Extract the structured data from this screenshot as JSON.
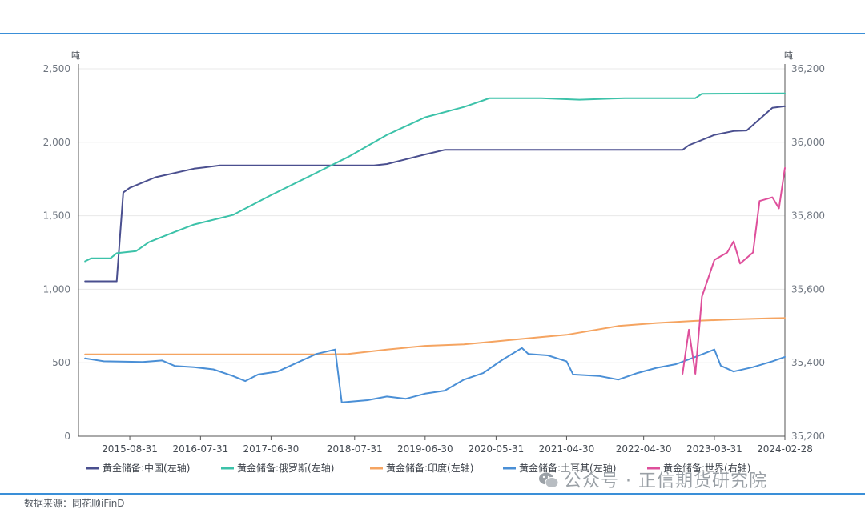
{
  "source": "数据来源：同花顺iFinD",
  "watermark": "公众号 · 正信期货研究院",
  "colors": {
    "frame": "#3a8fd8",
    "grid": "#e8e8e8"
  },
  "chart_data": {
    "type": "line",
    "left_axis": {
      "unit": "吨",
      "ylim": [
        0,
        2500
      ],
      "ticks": [
        "0",
        "500",
        "1,000",
        "1,500",
        "2,000",
        "2,500"
      ]
    },
    "right_axis": {
      "unit": "吨",
      "ylim": [
        35200,
        36200
      ],
      "ticks": [
        "35,200",
        "35,400",
        "35,600",
        "35,800",
        "36,000",
        "36,200"
      ]
    },
    "x_range": [
      "2014-12-31",
      "2024-02-28"
    ],
    "x_ticks": [
      "2015-08-31",
      "2016-07-31",
      "2017-06-30",
      "2018-07-31",
      "2019-06-30",
      "2020-05-31",
      "2021-04-30",
      "2022-04-30",
      "2023-03-31",
      "2024-02-28"
    ],
    "legend_position": "bottom",
    "series": [
      {
        "name": "黄金储备:中国(左轴)",
        "axis": "left",
        "color": "#4a4f8f",
        "points": [
          [
            "2015-01-31",
            1054
          ],
          [
            "2015-06-30",
            1054
          ],
          [
            "2015-07-31",
            1658
          ],
          [
            "2015-08-31",
            1690
          ],
          [
            "2015-12-31",
            1762
          ],
          [
            "2016-06-30",
            1820
          ],
          [
            "2016-10-31",
            1842
          ],
          [
            "2018-10-31",
            1842
          ],
          [
            "2018-12-31",
            1852
          ],
          [
            "2019-06-30",
            1917
          ],
          [
            "2019-09-30",
            1948
          ],
          [
            "2022-10-31",
            1948
          ],
          [
            "2022-11-30",
            1980
          ],
          [
            "2023-03-31",
            2050
          ],
          [
            "2023-06-30",
            2076
          ],
          [
            "2023-08-31",
            2080
          ],
          [
            "2023-12-31",
            2235
          ],
          [
            "2024-02-28",
            2245
          ]
        ]
      },
      {
        "name": "黄金储备:俄罗斯(左轴)",
        "axis": "left",
        "color": "#3cc2a9",
        "points": [
          [
            "2015-01-31",
            1190
          ],
          [
            "2015-02-28",
            1210
          ],
          [
            "2015-05-31",
            1210
          ],
          [
            "2015-06-30",
            1245
          ],
          [
            "2015-09-30",
            1260
          ],
          [
            "2015-11-30",
            1320
          ],
          [
            "2016-03-31",
            1390
          ],
          [
            "2016-06-30",
            1440
          ],
          [
            "2016-12-31",
            1505
          ],
          [
            "2017-06-30",
            1640
          ],
          [
            "2017-12-31",
            1770
          ],
          [
            "2018-06-30",
            1900
          ],
          [
            "2018-12-31",
            2050
          ],
          [
            "2019-06-30",
            2170
          ],
          [
            "2019-12-31",
            2240
          ],
          [
            "2020-03-31",
            2285
          ],
          [
            "2020-04-30",
            2300
          ],
          [
            "2020-12-31",
            2300
          ],
          [
            "2021-06-30",
            2290
          ],
          [
            "2022-01-31",
            2300
          ],
          [
            "2022-12-31",
            2300
          ],
          [
            "2023-01-31",
            2330
          ],
          [
            "2024-02-28",
            2333
          ]
        ]
      },
      {
        "name": "黄金储备:印度(左轴)",
        "axis": "left",
        "color": "#f5a461",
        "points": [
          [
            "2015-01-31",
            557
          ],
          [
            "2018-03-31",
            557
          ],
          [
            "2018-06-30",
            560
          ],
          [
            "2018-12-31",
            590
          ],
          [
            "2019-06-30",
            615
          ],
          [
            "2019-12-31",
            625
          ],
          [
            "2020-06-30",
            650
          ],
          [
            "2020-12-31",
            675
          ],
          [
            "2021-04-30",
            690
          ],
          [
            "2021-12-31",
            750
          ],
          [
            "2022-06-30",
            770
          ],
          [
            "2022-12-31",
            785
          ],
          [
            "2023-06-30",
            795
          ],
          [
            "2023-12-31",
            803
          ],
          [
            "2024-02-28",
            804
          ]
        ]
      },
      {
        "name": "黄金储备:土耳其(左轴)",
        "axis": "left",
        "color": "#4a8fd6",
        "points": [
          [
            "2015-01-31",
            530
          ],
          [
            "2015-04-30",
            510
          ],
          [
            "2015-10-31",
            505
          ],
          [
            "2016-01-31",
            515
          ],
          [
            "2016-03-31",
            478
          ],
          [
            "2016-06-30",
            470
          ],
          [
            "2016-09-30",
            455
          ],
          [
            "2016-12-31",
            410
          ],
          [
            "2017-02-28",
            375
          ],
          [
            "2017-04-30",
            420
          ],
          [
            "2017-07-31",
            440
          ],
          [
            "2017-10-31",
            500
          ],
          [
            "2018-01-31",
            560
          ],
          [
            "2018-04-30",
            590
          ],
          [
            "2018-05-31",
            230
          ],
          [
            "2018-09-30",
            245
          ],
          [
            "2018-12-31",
            270
          ],
          [
            "2019-03-31",
            255
          ],
          [
            "2019-06-30",
            290
          ],
          [
            "2019-09-30",
            310
          ],
          [
            "2019-12-31",
            385
          ],
          [
            "2020-03-31",
            430
          ],
          [
            "2020-06-30",
            520
          ],
          [
            "2020-09-30",
            600
          ],
          [
            "2020-10-31",
            560
          ],
          [
            "2021-01-31",
            550
          ],
          [
            "2021-04-30",
            510
          ],
          [
            "2021-05-31",
            420
          ],
          [
            "2021-09-30",
            410
          ],
          [
            "2021-12-31",
            385
          ],
          [
            "2022-03-31",
            430
          ],
          [
            "2022-06-30",
            465
          ],
          [
            "2022-09-30",
            490
          ],
          [
            "2022-12-31",
            540
          ],
          [
            "2023-03-31",
            590
          ],
          [
            "2023-04-30",
            480
          ],
          [
            "2023-06-30",
            440
          ],
          [
            "2023-09-30",
            470
          ],
          [
            "2023-12-31",
            510
          ],
          [
            "2024-02-28",
            540
          ]
        ]
      },
      {
        "name": "黄金储备:世界(右轴)",
        "axis": "right",
        "color": "#de4f9b",
        "points": [
          [
            "2022-10-31",
            35370
          ],
          [
            "2022-11-30",
            35490
          ],
          [
            "2022-12-31",
            35370
          ],
          [
            "2023-01-31",
            35580
          ],
          [
            "2023-03-31",
            35680
          ],
          [
            "2023-05-31",
            35700
          ],
          [
            "2023-06-30",
            35730
          ],
          [
            "2023-07-31",
            35670
          ],
          [
            "2023-09-30",
            35700
          ],
          [
            "2023-10-31",
            35840
          ],
          [
            "2023-12-31",
            35850
          ],
          [
            "2024-01-31",
            35820
          ],
          [
            "2024-02-28",
            35930
          ]
        ]
      }
    ]
  }
}
